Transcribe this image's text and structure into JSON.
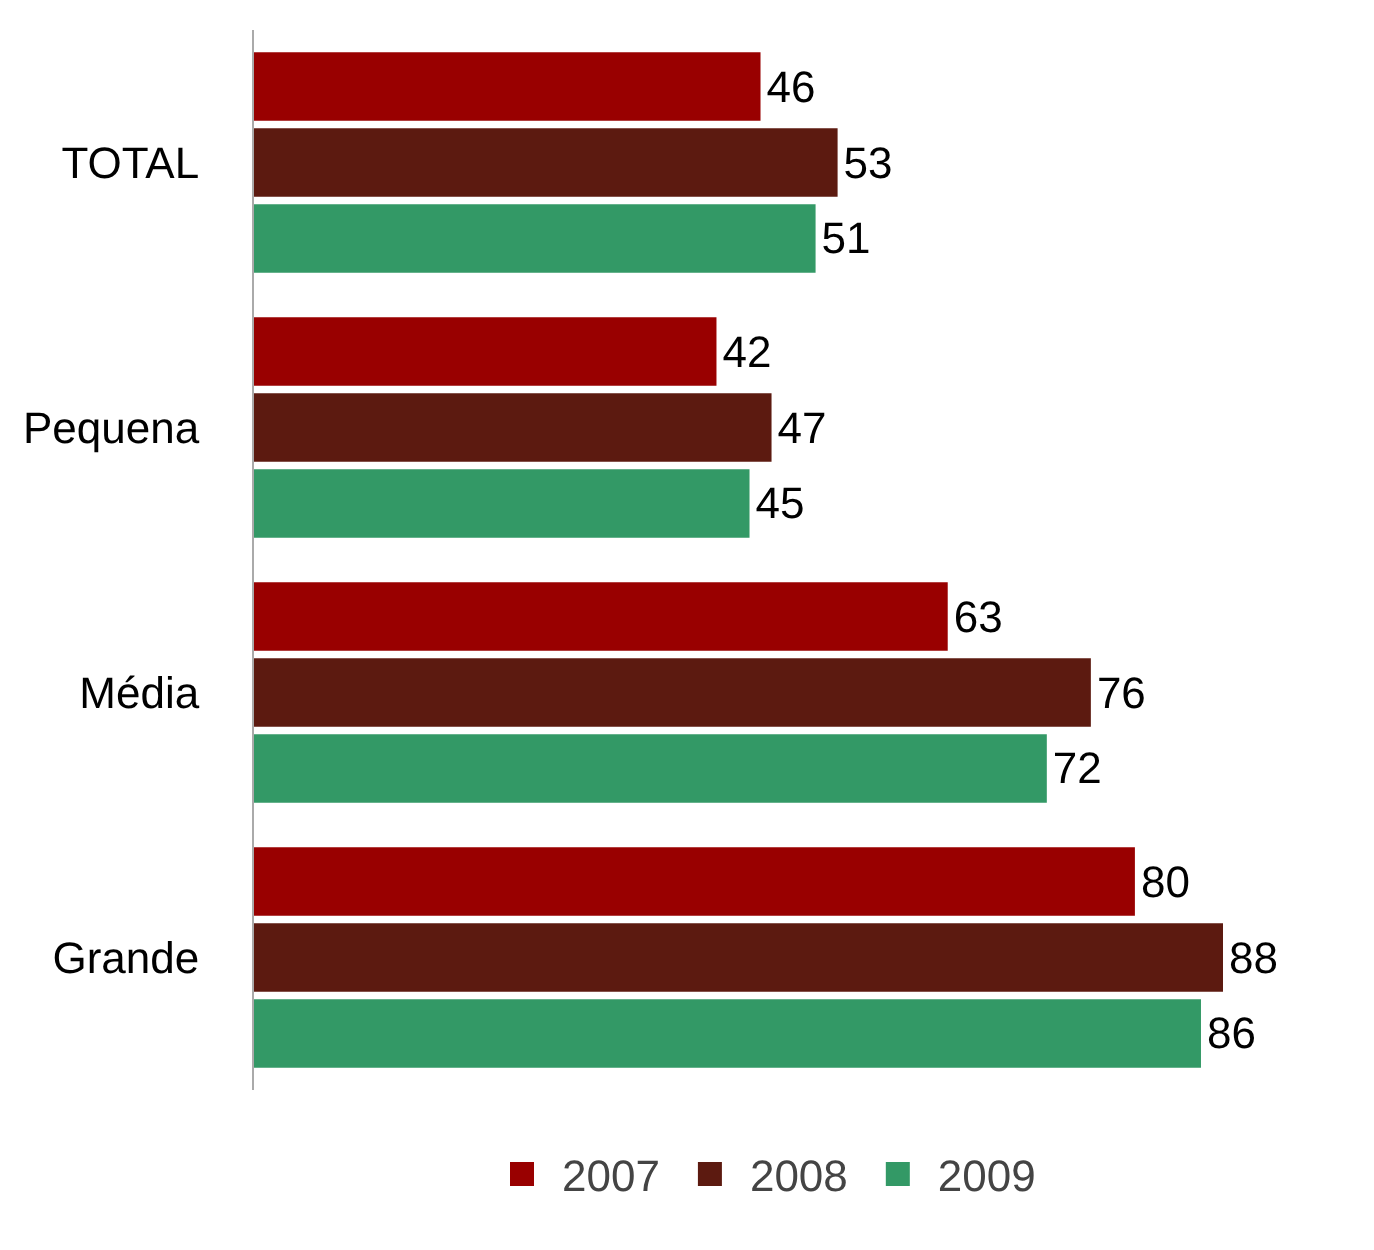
{
  "chart_data": {
    "type": "bar",
    "orientation": "horizontal",
    "categories": [
      "TOTAL",
      "Pequena",
      "Média",
      "Grande"
    ],
    "series": [
      {
        "name": "2007",
        "color": "#990000",
        "values": [
          46,
          42,
          63,
          80
        ]
      },
      {
        "name": "2008",
        "color": "#5c1a10",
        "values": [
          53,
          47,
          76,
          88
        ]
      },
      {
        "name": "2009",
        "color": "#339966",
        "values": [
          51,
          45,
          72,
          86
        ]
      }
    ],
    "data_labels": true,
    "legend": "bottom"
  }
}
